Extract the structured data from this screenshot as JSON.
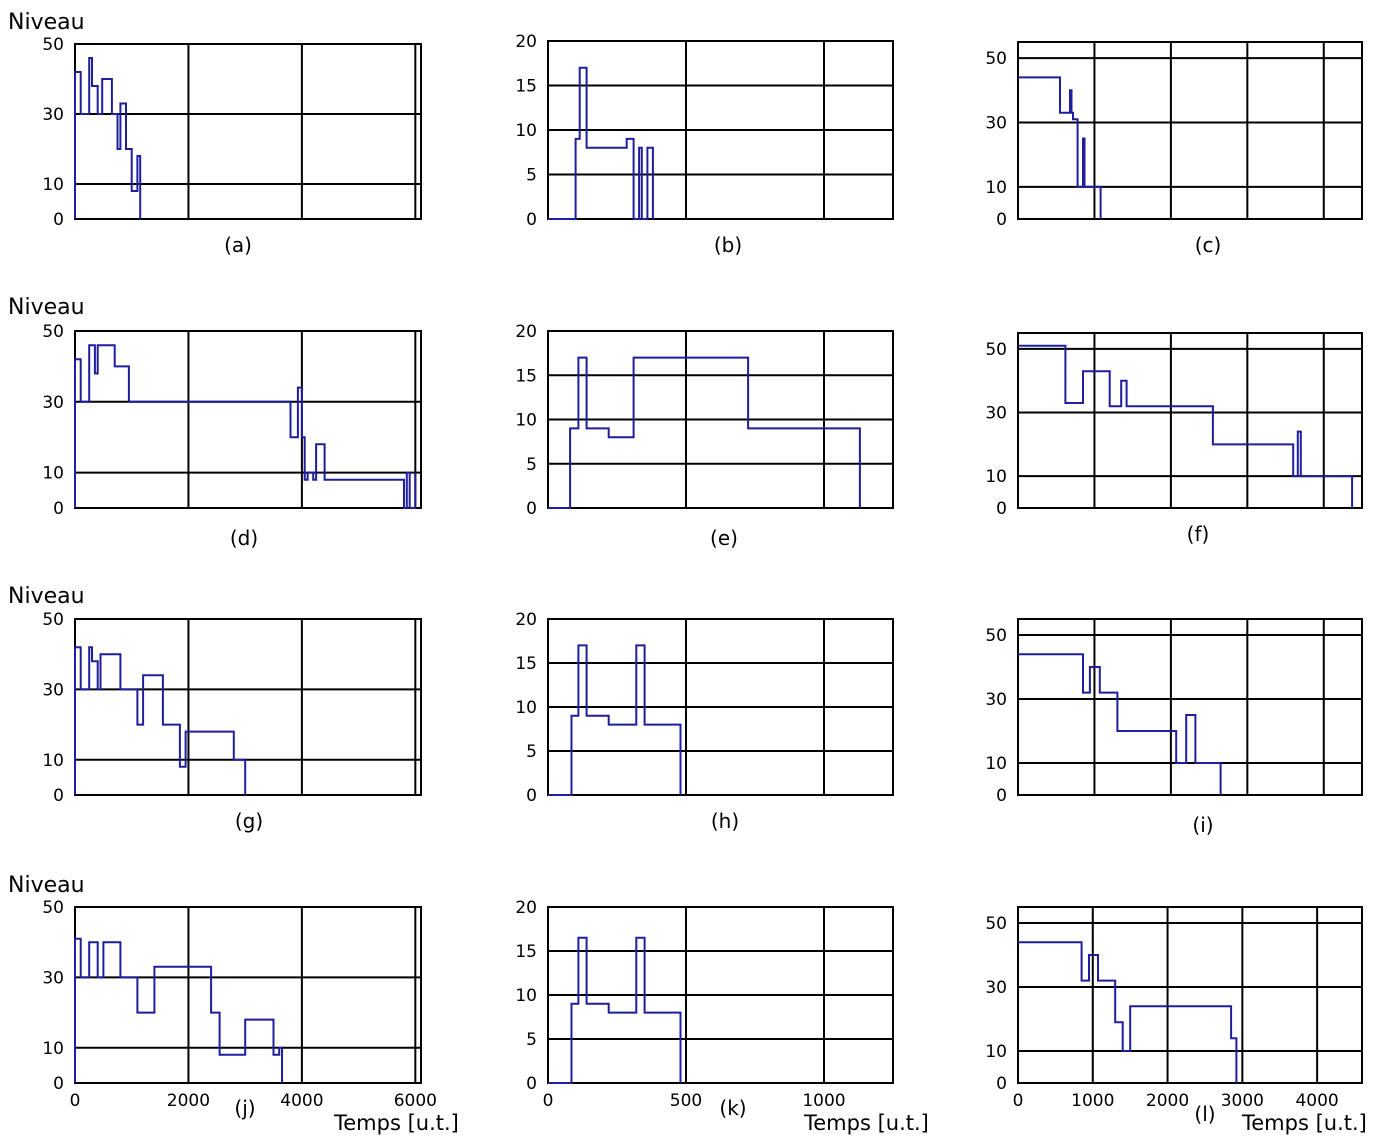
{
  "y_axis_title": "Niveau",
  "x_axis_title": "Temps [u.t.]",
  "colors": {
    "line": "#1f1f9e",
    "grid": "#000000",
    "background": "#ffffff"
  },
  "chart_data": [
    {
      "label": "(a)",
      "type": "line",
      "ylabel": "Niveau",
      "xlim": [
        0,
        6100
      ],
      "ylim": [
        0,
        50
      ],
      "yticks": [
        0,
        10,
        30,
        50
      ],
      "grid_x": [
        2000,
        4000,
        6000
      ],
      "grid_y": [
        10,
        30,
        50
      ],
      "series": [
        {
          "x": [
            0,
            0,
            100,
            100,
            250,
            250,
            300,
            300,
            400,
            400,
            480,
            480,
            650,
            650,
            750,
            750,
            800,
            800,
            900,
            900,
            1000,
            1000,
            1100,
            1100,
            1150,
            1150
          ],
          "values": [
            0,
            42,
            42,
            30,
            30,
            46,
            46,
            38,
            38,
            30,
            30,
            40,
            40,
            30,
            30,
            20,
            20,
            33,
            33,
            20,
            20,
            8,
            8,
            18,
            18,
            0
          ]
        }
      ]
    },
    {
      "label": "(b)",
      "type": "line",
      "xlim": [
        0,
        1250
      ],
      "ylim": [
        0,
        20
      ],
      "yticks": [
        0,
        5,
        10,
        15,
        20
      ],
      "grid_x": [
        500,
        1000
      ],
      "grid_y": [
        5,
        10,
        15,
        20
      ],
      "series": [
        {
          "x": [
            0,
            100,
            100,
            115,
            115,
            140,
            140,
            285,
            285,
            310,
            310,
            330,
            330,
            340,
            340,
            360,
            360,
            380,
            380
          ],
          "values": [
            0,
            0,
            9,
            9,
            17,
            17,
            8,
            8,
            9,
            9,
            0,
            0,
            8,
            8,
            0,
            0,
            8,
            8,
            0
          ]
        }
      ]
    },
    {
      "label": "(c)",
      "type": "line",
      "xlim": [
        0,
        4500
      ],
      "ylim": [
        0,
        55
      ],
      "yticks": [
        0,
        10,
        30,
        50
      ],
      "grid_x": [
        1000,
        2000,
        3000,
        4000
      ],
      "grid_y": [
        10,
        30,
        50
      ],
      "series": [
        {
          "x": [
            0,
            550,
            550,
            680,
            680,
            700,
            700,
            720,
            720,
            780,
            780,
            850,
            850,
            870,
            870,
            900,
            900,
            1080,
            1080
          ],
          "values": [
            44,
            44,
            33,
            33,
            40,
            40,
            33,
            33,
            31,
            31,
            10,
            10,
            25,
            25,
            10,
            10,
            10,
            10,
            0
          ]
        }
      ]
    },
    {
      "label": "(d)",
      "type": "line",
      "ylabel": "Niveau",
      "xlim": [
        0,
        6100
      ],
      "ylim": [
        0,
        50
      ],
      "yticks": [
        0,
        10,
        30,
        50
      ],
      "grid_x": [
        2000,
        4000,
        6000
      ],
      "grid_y": [
        10,
        30,
        50
      ],
      "series": [
        {
          "x": [
            0,
            0,
            100,
            100,
            250,
            250,
            350,
            350,
            400,
            400,
            700,
            700,
            950,
            950,
            3800,
            3800,
            3930,
            3930,
            4000,
            4000,
            4050,
            4050,
            4100,
            4100,
            4200,
            4200,
            4250,
            4250,
            4400,
            4400,
            4550,
            4550,
            5800,
            5800,
            5850,
            5850,
            5900,
            5900,
            6000,
            6000
          ],
          "values": [
            0,
            42,
            42,
            30,
            30,
            46,
            46,
            38,
            38,
            46,
            46,
            40,
            40,
            30,
            30,
            20,
            20,
            34,
            34,
            20,
            20,
            8,
            8,
            10,
            10,
            8,
            8,
            18,
            18,
            8,
            8,
            8,
            8,
            0,
            0,
            10,
            10,
            0,
            0,
            10
          ]
        }
      ]
    },
    {
      "label": "(e)",
      "type": "line",
      "xlim": [
        0,
        1250
      ],
      "ylim": [
        0,
        20
      ],
      "yticks": [
        0,
        5,
        10,
        15,
        20
      ],
      "grid_x": [
        500,
        1000
      ],
      "grid_y": [
        5,
        10,
        15,
        20
      ],
      "series": [
        {
          "x": [
            0,
            80,
            80,
            110,
            110,
            140,
            140,
            220,
            220,
            310,
            310,
            725,
            725,
            1130,
            1130
          ],
          "values": [
            0,
            0,
            9,
            9,
            17,
            17,
            9,
            9,
            8,
            8,
            17,
            17,
            9,
            9,
            0
          ]
        }
      ]
    },
    {
      "label": "(f)",
      "type": "line",
      "xlim": [
        0,
        4500
      ],
      "ylim": [
        0,
        55
      ],
      "yticks": [
        0,
        10,
        30,
        50
      ],
      "grid_x": [
        1000,
        2000,
        3000,
        4000
      ],
      "grid_y": [
        10,
        30,
        50
      ],
      "series": [
        {
          "x": [
            0,
            620,
            620,
            850,
            850,
            1200,
            1200,
            1350,
            1350,
            1420,
            1420,
            2550,
            2550,
            3600,
            3600,
            3660,
            3660,
            3700,
            3700,
            4370,
            4370
          ],
          "values": [
            51,
            51,
            33,
            33,
            43,
            43,
            32,
            32,
            40,
            40,
            32,
            32,
            20,
            20,
            10,
            10,
            24,
            24,
            10,
            10,
            0
          ]
        }
      ]
    },
    {
      "label": "(g)",
      "type": "line",
      "ylabel": "Niveau",
      "xlim": [
        0,
        6100
      ],
      "ylim": [
        0,
        50
      ],
      "yticks": [
        0,
        10,
        30,
        50
      ],
      "grid_x": [
        2000,
        4000,
        6000
      ],
      "grid_y": [
        10,
        30,
        50
      ],
      "series": [
        {
          "x": [
            0,
            0,
            100,
            100,
            250,
            250,
            300,
            300,
            400,
            400,
            450,
            450,
            800,
            800,
            1100,
            1100,
            1200,
            1200,
            1550,
            1550,
            1850,
            1850,
            1950,
            1950,
            2050,
            2050,
            2800,
            2800,
            3000,
            3000
          ],
          "values": [
            0,
            42,
            42,
            30,
            30,
            42,
            42,
            38,
            38,
            30,
            30,
            40,
            40,
            30,
            30,
            20,
            20,
            34,
            34,
            20,
            20,
            8,
            8,
            18,
            18,
            18,
            18,
            10,
            10,
            0
          ]
        }
      ]
    },
    {
      "label": "(h)",
      "type": "line",
      "xlim": [
        0,
        1250
      ],
      "ylim": [
        0,
        20
      ],
      "yticks": [
        0,
        5,
        10,
        15,
        20
      ],
      "grid_x": [
        500,
        1000
      ],
      "grid_y": [
        5,
        10,
        15,
        20
      ],
      "series": [
        {
          "x": [
            0,
            85,
            85,
            110,
            110,
            140,
            140,
            220,
            220,
            320,
            320,
            350,
            350,
            480,
            480
          ],
          "values": [
            0,
            0,
            9,
            9,
            17,
            17,
            9,
            9,
            8,
            8,
            17,
            17,
            8,
            8,
            0
          ]
        }
      ]
    },
    {
      "label": "(i)",
      "type": "line",
      "xlim": [
        0,
        4500
      ],
      "ylim": [
        0,
        55
      ],
      "yticks": [
        0,
        10,
        30,
        50
      ],
      "grid_x": [
        1000,
        2000,
        3000,
        4000
      ],
      "grid_y": [
        10,
        30,
        50
      ],
      "series": [
        {
          "x": [
            0,
            850,
            850,
            940,
            940,
            1070,
            1070,
            1300,
            1300,
            2070,
            2070,
            2200,
            2200,
            2320,
            2320,
            2650,
            2650
          ],
          "values": [
            44,
            44,
            32,
            32,
            40,
            40,
            32,
            32,
            20,
            20,
            10,
            10,
            25,
            25,
            10,
            10,
            0
          ]
        }
      ]
    },
    {
      "label": "(j)",
      "type": "line",
      "ylabel": "Niveau",
      "xlabel": "Temps [u.t.]",
      "xlim": [
        0,
        6100
      ],
      "ylim": [
        0,
        50
      ],
      "yticks": [
        0,
        10,
        30,
        50
      ],
      "xticks": [
        0,
        2000,
        4000,
        6000
      ],
      "grid_x": [
        2000,
        4000,
        6000
      ],
      "grid_y": [
        10,
        30,
        50
      ],
      "series": [
        {
          "x": [
            0,
            0,
            100,
            100,
            250,
            250,
            400,
            400,
            500,
            500,
            800,
            800,
            1100,
            1100,
            1400,
            1400,
            2400,
            2400,
            2550,
            2550,
            3000,
            3000,
            3500,
            3500,
            3600,
            3600,
            3650,
            3650
          ],
          "values": [
            0,
            41,
            41,
            30,
            30,
            40,
            40,
            30,
            30,
            40,
            40,
            30,
            30,
            20,
            20,
            33,
            33,
            20,
            20,
            8,
            8,
            18,
            18,
            8,
            8,
            10,
            10,
            0
          ]
        }
      ]
    },
    {
      "label": "(k)",
      "type": "line",
      "xlabel": "Temps [u.t.]",
      "xlim": [
        0,
        1250
      ],
      "ylim": [
        0,
        20
      ],
      "yticks": [
        0,
        5,
        10,
        15,
        20
      ],
      "xticks": [
        0,
        500,
        1000
      ],
      "grid_x": [
        500,
        1000
      ],
      "grid_y": [
        5,
        10,
        15,
        20
      ],
      "series": [
        {
          "x": [
            0,
            85,
            85,
            110,
            110,
            140,
            140,
            220,
            220,
            320,
            320,
            350,
            350,
            480,
            480
          ],
          "values": [
            0,
            0,
            9,
            9,
            16.5,
            16.5,
            9,
            9,
            8,
            8,
            16.5,
            16.5,
            8,
            8,
            0
          ]
        }
      ]
    },
    {
      "label": "(l)",
      "type": "line",
      "xlabel": "Temps [u.t.]",
      "xlim": [
        0,
        4600
      ],
      "ylim": [
        0,
        55
      ],
      "yticks": [
        0,
        10,
        30,
        50
      ],
      "xticks": [
        0,
        1000,
        2000,
        3000,
        4000
      ],
      "grid_x": [
        1000,
        2000,
        3000,
        4000
      ],
      "grid_y": [
        10,
        30,
        50
      ],
      "series": [
        {
          "x": [
            0,
            850,
            850,
            950,
            950,
            1070,
            1070,
            1300,
            1300,
            1400,
            1400,
            1500,
            1500,
            2850,
            2850,
            2920,
            2920
          ],
          "values": [
            44,
            44,
            32,
            32,
            40,
            40,
            32,
            32,
            19,
            19,
            10,
            10,
            24,
            24,
            14,
            14,
            0
          ]
        }
      ]
    }
  ]
}
